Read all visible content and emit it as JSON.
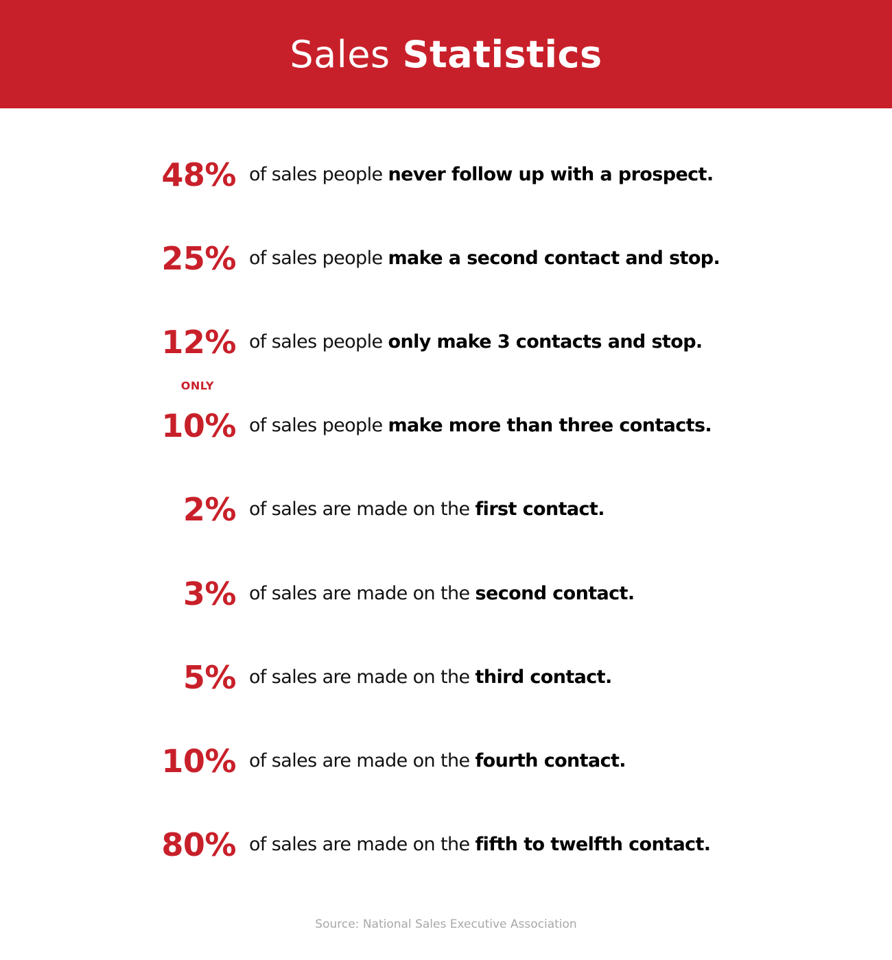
{
  "header": {
    "title_light": "Sales",
    "title_bold": "Statistics",
    "background_color": "#c8202a"
  },
  "accent_color": "#c8202a",
  "stats": [
    {
      "value": "48%",
      "qualifier": "",
      "text": "of sales people",
      "emphasis": "never follow up with a prospect."
    },
    {
      "value": "25%",
      "qualifier": "",
      "text": "of sales people",
      "emphasis": "make a second contact and stop."
    },
    {
      "value": "12%",
      "qualifier": "",
      "text": "of sales people",
      "emphasis": "only make 3 contacts and stop."
    },
    {
      "value": "10%",
      "qualifier": "ONLY",
      "text": "of sales people",
      "emphasis": "make more than three contacts."
    },
    {
      "value": "2%",
      "qualifier": "",
      "text": "of sales are made on the",
      "emphasis": "first contact."
    },
    {
      "value": "3%",
      "qualifier": "",
      "text": "of sales are made on the",
      "emphasis": "second contact."
    },
    {
      "value": "5%",
      "qualifier": "",
      "text": "of sales are made on the",
      "emphasis": "third contact."
    },
    {
      "value": "10%",
      "qualifier": "",
      "text": "of sales are made on the",
      "emphasis": "fourth contact."
    },
    {
      "value": "80%",
      "qualifier": "",
      "text": "of sales are made on the",
      "emphasis": "fifth to twelfth contact."
    }
  ],
  "source": "Source: National Sales Executive Association"
}
